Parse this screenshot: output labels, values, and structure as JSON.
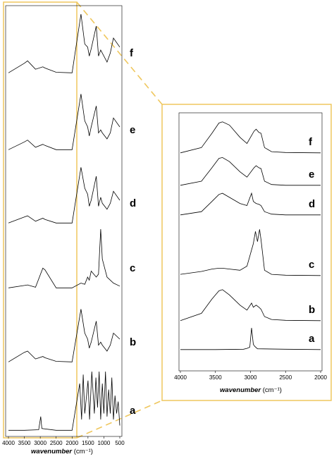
{
  "figure": {
    "highlight_color": "#EFC75E",
    "line_color": "#000000"
  },
  "chart_data": [
    {
      "type": "line",
      "panel": "full",
      "xlabel": "wavenumber (cm⁻¹)",
      "xlabel_main": "wavenumber",
      "xlabel_unit": " (cm⁻¹)",
      "xlim": [
        4000,
        500
      ],
      "x_ticks": [
        4000,
        3500,
        3000,
        2500,
        2000,
        1500,
        1000,
        500
      ],
      "highlight_region": [
        4000,
        2000
      ],
      "grid": false,
      "series": [
        {
          "name": "f",
          "x": [
            4000,
            3500,
            3400,
            3150,
            2920,
            2850,
            2500,
            2000,
            1720,
            1600,
            1510,
            1460,
            1400,
            1240,
            1170,
            1100,
            1050,
            900,
            800,
            700,
            500
          ],
          "y": [
            0.02,
            0.18,
            0.22,
            0.08,
            0.12,
            0.1,
            0.03,
            0.02,
            1.0,
            0.5,
            0.45,
            0.3,
            0.42,
            0.8,
            0.3,
            0.4,
            0.35,
            0.2,
            0.35,
            0.6,
            0.45
          ]
        },
        {
          "name": "e",
          "x": [
            4000,
            3500,
            3400,
            3150,
            2920,
            2850,
            2500,
            2000,
            1720,
            1600,
            1510,
            1460,
            1400,
            1240,
            1170,
            1100,
            1050,
            900,
            800,
            700,
            500
          ],
          "y": [
            0.02,
            0.15,
            0.18,
            0.06,
            0.11,
            0.09,
            0.02,
            0.02,
            0.95,
            0.5,
            0.4,
            0.25,
            0.4,
            0.75,
            0.3,
            0.35,
            0.3,
            0.2,
            0.3,
            0.55,
            0.4
          ]
        },
        {
          "name": "d",
          "x": [
            4000,
            3500,
            3400,
            3150,
            2920,
            2850,
            2500,
            2000,
            1720,
            1600,
            1510,
            1460,
            1400,
            1240,
            1170,
            1100,
            1050,
            900,
            800,
            700,
            500
          ],
          "y": [
            0.02,
            0.12,
            0.14,
            0.05,
            0.1,
            0.08,
            0.02,
            0.02,
            0.95,
            0.6,
            0.5,
            0.3,
            0.4,
            0.8,
            0.3,
            0.45,
            0.35,
            0.25,
            0.35,
            0.55,
            0.4
          ]
        },
        {
          "name": "c",
          "x": [
            4000,
            3500,
            3400,
            3150,
            2920,
            2850,
            2500,
            2000,
            1720,
            1600,
            1510,
            1460,
            1400,
            1240,
            1170,
            1100,
            1050,
            900,
            800,
            700,
            500
          ],
          "y": [
            0.02,
            0.06,
            0.07,
            0.03,
            0.35,
            0.32,
            0.02,
            0.02,
            0.1,
            0.08,
            0.2,
            0.15,
            0.3,
            0.2,
            0.25,
            1.0,
            0.5,
            0.2,
            0.15,
            0.1,
            0.05
          ]
        },
        {
          "name": "b",
          "x": [
            4000,
            3500,
            3400,
            3150,
            2920,
            2850,
            2500,
            2000,
            1720,
            1600,
            1510,
            1460,
            1400,
            1240,
            1170,
            1100,
            1050,
            900,
            800,
            700,
            500
          ],
          "y": [
            0.02,
            0.18,
            0.2,
            0.07,
            0.11,
            0.09,
            0.03,
            0.02,
            0.9,
            0.5,
            0.4,
            0.25,
            0.35,
            0.7,
            0.3,
            0.35,
            0.3,
            0.2,
            0.3,
            0.5,
            0.4
          ]
        },
        {
          "name": "a",
          "x": [
            4000,
            3500,
            3050,
            2985,
            2950,
            2500,
            2000,
            1760,
            1700,
            1650,
            1600,
            1500,
            1450,
            1380,
            1300,
            1250,
            1200,
            1150,
            1100,
            1050,
            1000,
            950,
            900,
            850,
            800,
            750,
            700,
            650,
            600,
            550,
            500
          ],
          "y": [
            0.02,
            0.02,
            0.03,
            0.25,
            0.05,
            0.02,
            0.02,
            0.8,
            0.2,
            0.95,
            0.3,
            0.85,
            0.2,
            1.0,
            0.3,
            0.9,
            0.4,
            1.0,
            0.2,
            0.8,
            0.3,
            1.0,
            0.25,
            0.7,
            0.3,
            0.9,
            0.2,
            0.6,
            0.3,
            0.5,
            0.1
          ]
        }
      ]
    },
    {
      "type": "line",
      "panel": "zoom",
      "xlabel": "wavenumber (cm⁻¹)",
      "xlabel_main": "wavenumber",
      "xlabel_unit": " (cm⁻¹)",
      "xlim": [
        4000,
        2000
      ],
      "x_ticks": [
        4000,
        3500,
        3000,
        2500,
        2000
      ],
      "grid": false,
      "series": [
        {
          "name": "f",
          "x": [
            4000,
            3700,
            3550,
            3450,
            3400,
            3300,
            3150,
            3050,
            2950,
            2920,
            2880,
            2850,
            2800,
            2700,
            2500,
            2000
          ],
          "y": [
            0.02,
            0.15,
            0.5,
            0.75,
            0.78,
            0.7,
            0.4,
            0.25,
            0.55,
            0.6,
            0.52,
            0.5,
            0.15,
            0.05,
            0.03,
            0.02
          ]
        },
        {
          "name": "e",
          "x": [
            4000,
            3700,
            3550,
            3450,
            3400,
            3300,
            3150,
            3050,
            2950,
            2920,
            2880,
            2850,
            2800,
            2700,
            2500,
            2000
          ],
          "y": [
            0.02,
            0.12,
            0.45,
            0.68,
            0.7,
            0.6,
            0.35,
            0.22,
            0.45,
            0.5,
            0.45,
            0.43,
            0.12,
            0.04,
            0.02,
            0.02
          ]
        },
        {
          "name": "d",
          "x": [
            4000,
            3700,
            3550,
            3450,
            3400,
            3300,
            3150,
            3050,
            2985,
            2960,
            2920,
            2880,
            2850,
            2800,
            2700,
            2500,
            2000
          ],
          "y": [
            0.02,
            0.1,
            0.35,
            0.52,
            0.55,
            0.45,
            0.3,
            0.25,
            0.55,
            0.35,
            0.3,
            0.28,
            0.25,
            0.1,
            0.04,
            0.02,
            0.02
          ]
        },
        {
          "name": "c",
          "x": [
            4000,
            3700,
            3550,
            3450,
            3400,
            3300,
            3150,
            3050,
            2960,
            2930,
            2900,
            2870,
            2850,
            2800,
            2700,
            2500,
            2000
          ],
          "y": [
            0.05,
            0.12,
            0.18,
            0.2,
            0.2,
            0.18,
            0.15,
            0.25,
            0.8,
            1.1,
            0.85,
            1.15,
            0.9,
            0.15,
            0.05,
            0.03,
            0.02
          ]
        },
        {
          "name": "b",
          "x": [
            4000,
            3700,
            3550,
            3450,
            3400,
            3300,
            3150,
            3050,
            2985,
            2960,
            2920,
            2880,
            2850,
            2800,
            2700,
            2500,
            2000
          ],
          "y": [
            0.02,
            0.2,
            0.55,
            0.75,
            0.78,
            0.65,
            0.4,
            0.28,
            0.45,
            0.35,
            0.4,
            0.35,
            0.3,
            0.12,
            0.05,
            0.03,
            0.02
          ]
        },
        {
          "name": "a",
          "x": [
            4000,
            3500,
            3100,
            3050,
            3010,
            2985,
            2960,
            2940,
            2900,
            2500,
            2000
          ],
          "y": [
            0.02,
            0.02,
            0.03,
            0.05,
            0.08,
            0.55,
            0.15,
            0.1,
            0.04,
            0.03,
            0.02
          ]
        }
      ]
    }
  ]
}
